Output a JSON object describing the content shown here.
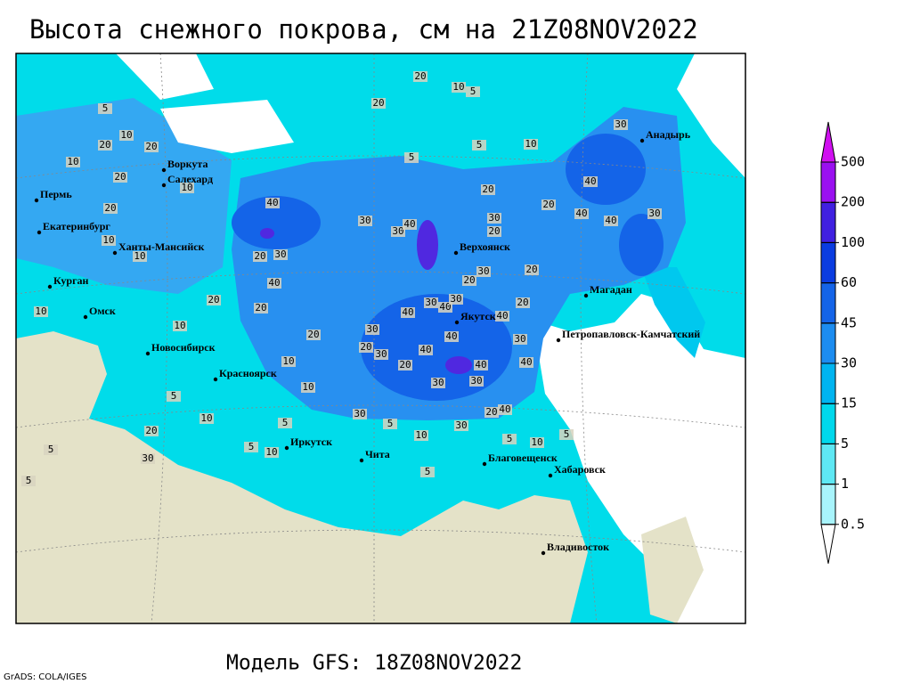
{
  "title": "Высота снежного покрова, см на 21Z08NOV2022",
  "subtitle": "Модель GFS: 18Z08NOV2022",
  "credit": "GrADS: COLA/IGES",
  "cities": [
    "Воркута",
    "Салехард",
    "Пермь",
    "Екатеринбург",
    "Ханты-Мансийск",
    "Курган",
    "Омск",
    "Новосибирск",
    "Красноярск",
    "Иркутск",
    "Чита",
    "Верхоянск",
    "Якутск",
    "Магадан",
    "Анадырь",
    "Петропавловск-Камчатский",
    "Благовещенск",
    "Хабаровск",
    "Владивосток"
  ],
  "contour_labels": [
    20,
    10,
    5,
    20,
    5,
    10,
    20,
    20,
    10,
    20,
    10,
    5,
    5,
    10,
    30,
    40,
    20,
    20,
    20,
    40,
    30,
    30,
    40,
    30,
    20,
    40,
    40,
    30,
    10,
    10,
    20,
    30,
    40,
    30,
    20,
    20,
    20,
    20,
    20,
    10,
    10,
    40,
    30,
    40,
    30,
    40,
    20,
    30,
    40,
    20,
    30,
    40,
    30,
    10,
    20,
    40,
    40,
    10,
    30,
    30,
    5,
    10,
    5,
    30,
    5,
    20,
    40,
    10,
    30,
    20,
    5,
    30,
    5,
    10,
    5,
    5,
    5,
    5,
    10
  ],
  "legend": {
    "levels": [
      0.5,
      1,
      5,
      15,
      30,
      45,
      60,
      100,
      200,
      500
    ],
    "colors": [
      "#ffffff",
      "#a8f4fc",
      "#5ee8f4",
      "#00d8ec",
      "#00b4f0",
      "#1c8cf0",
      "#1464e8",
      "#0a3ce0",
      "#4020e0",
      "#9a10f0",
      "#d010f0"
    ]
  }
}
